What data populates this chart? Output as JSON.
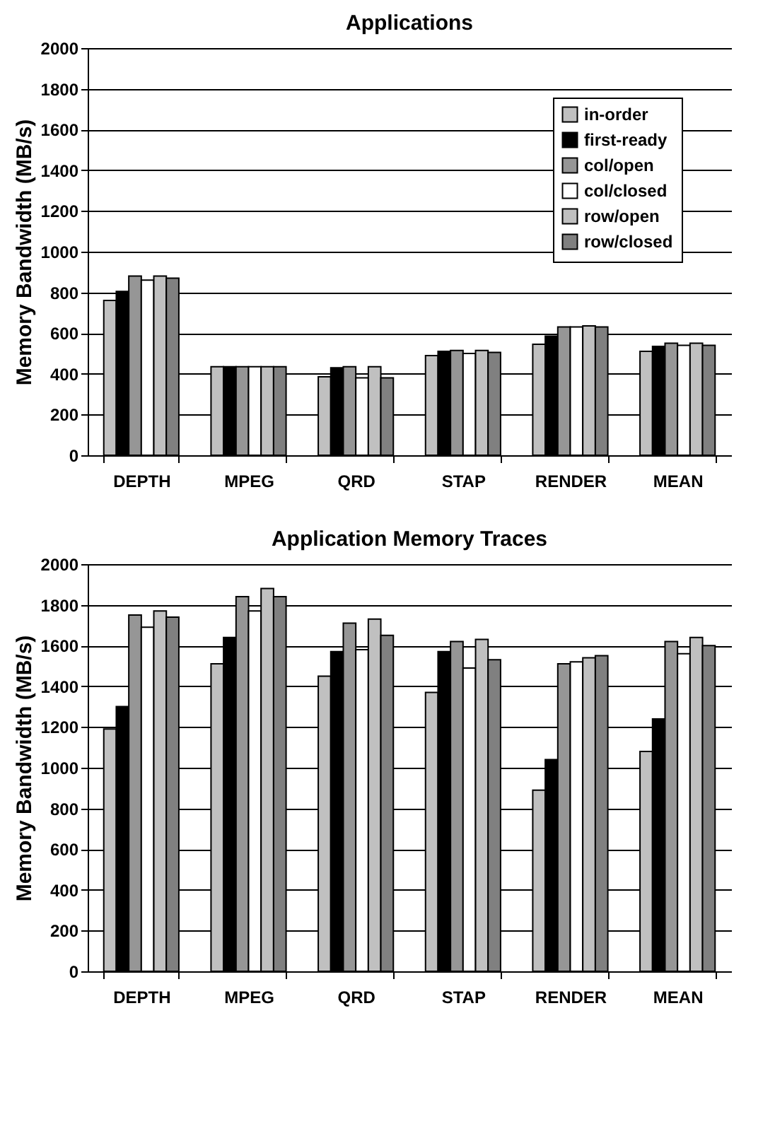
{
  "chart_data": [
    {
      "type": "bar",
      "title": "Applications",
      "ylabel": "Memory Bandwidth (MB/s)",
      "categories": [
        "DEPTH",
        "MPEG",
        "QRD",
        "STAP",
        "RENDER",
        "MEAN"
      ],
      "ylim": [
        0,
        2000
      ],
      "yticks": [
        0,
        200,
        400,
        600,
        800,
        1000,
        1200,
        1400,
        1600,
        1800,
        2000
      ],
      "grid": "y",
      "legend": "top right",
      "series": [
        {
          "name": "in-order",
          "color": "#c0c0c0",
          "values": [
            760,
            435,
            385,
            490,
            545,
            510
          ]
        },
        {
          "name": "first-ready",
          "color": "#000000",
          "values": [
            805,
            435,
            430,
            510,
            585,
            535
          ]
        },
        {
          "name": "col/open",
          "color": "#969696",
          "values": [
            880,
            435,
            435,
            515,
            630,
            550
          ]
        },
        {
          "name": "col/closed",
          "color": "#ffffff",
          "values": [
            860,
            435,
            380,
            500,
            630,
            540
          ]
        },
        {
          "name": "row/open",
          "color": "#c0c0c0",
          "values": [
            880,
            435,
            435,
            515,
            635,
            550
          ]
        },
        {
          "name": "row/closed",
          "color": "#808080",
          "values": [
            870,
            435,
            380,
            505,
            630,
            540
          ]
        }
      ]
    },
    {
      "type": "bar",
      "title": "Application Memory Traces",
      "ylabel": "Memory Bandwidth (MB/s)",
      "categories": [
        "DEPTH",
        "MPEG",
        "QRD",
        "STAP",
        "RENDER",
        "MEAN"
      ],
      "ylim": [
        0,
        2000
      ],
      "yticks": [
        0,
        200,
        400,
        600,
        800,
        1000,
        1200,
        1400,
        1600,
        1800,
        2000
      ],
      "grid": "y",
      "series": [
        {
          "color": "#c0c0c0",
          "values": [
            1190,
            1510,
            1450,
            1370,
            890,
            1080
          ]
        },
        {
          "color": "#000000",
          "values": [
            1300,
            1640,
            1570,
            1570,
            1040,
            1240
          ]
        },
        {
          "color": "#969696",
          "values": [
            1750,
            1840,
            1710,
            1620,
            1510,
            1620
          ]
        },
        {
          "color": "#ffffff",
          "values": [
            1690,
            1770,
            1580,
            1490,
            1520,
            1560
          ]
        },
        {
          "color": "#c0c0c0",
          "values": [
            1770,
            1880,
            1730,
            1630,
            1540,
            1640
          ]
        },
        {
          "color": "#808080",
          "values": [
            1740,
            1840,
            1650,
            1530,
            1550,
            1600
          ]
        }
      ]
    }
  ]
}
